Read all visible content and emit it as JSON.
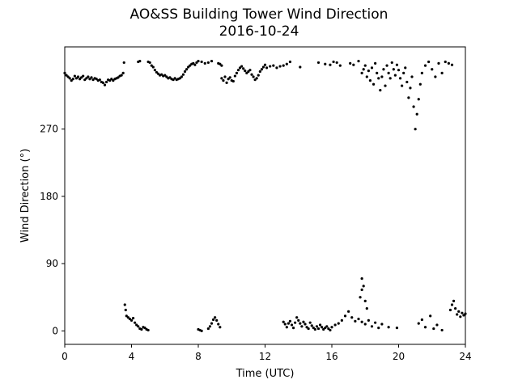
{
  "chart_data": {
    "type": "scatter",
    "title": "AO&SS Building Tower Wind Direction",
    "subtitle": "2016-10-24",
    "xlabel": "Time (UTC)",
    "ylabel": "Wind Direction (°)",
    "xlim": [
      0,
      24
    ],
    "ylim": [
      -18,
      380
    ],
    "xticks": [
      0,
      4,
      8,
      12,
      16,
      20,
      24
    ],
    "yticks": [
      0,
      90,
      180,
      270
    ],
    "grid": false,
    "marker_color": "#000000",
    "series": [
      {
        "points": [
          [
            0.0,
            345
          ],
          [
            0.1,
            342
          ],
          [
            0.2,
            340
          ],
          [
            0.3,
            338
          ],
          [
            0.4,
            335
          ],
          [
            0.5,
            337
          ],
          [
            0.6,
            341
          ],
          [
            0.7,
            338
          ],
          [
            0.8,
            340
          ],
          [
            0.9,
            337
          ],
          [
            1.0,
            339
          ],
          [
            1.1,
            341
          ],
          [
            1.2,
            336
          ],
          [
            1.3,
            338
          ],
          [
            1.4,
            340
          ],
          [
            1.5,
            337
          ],
          [
            1.6,
            339
          ],
          [
            1.7,
            336
          ],
          [
            1.8,
            338
          ],
          [
            1.9,
            337
          ],
          [
            2.0,
            335
          ],
          [
            2.1,
            336
          ],
          [
            2.2,
            333
          ],
          [
            2.3,
            332
          ],
          [
            2.4,
            329
          ],
          [
            2.5,
            333
          ],
          [
            2.6,
            336
          ],
          [
            2.7,
            335
          ],
          [
            2.8,
            337
          ],
          [
            2.9,
            335
          ],
          [
            3.0,
            337
          ],
          [
            3.1,
            338
          ],
          [
            3.2,
            339
          ],
          [
            3.3,
            341
          ],
          [
            3.4,
            342
          ],
          [
            3.5,
            345
          ],
          [
            3.55,
            359
          ],
          [
            3.6,
            35
          ],
          [
            3.65,
            28
          ],
          [
            3.7,
            20
          ],
          [
            3.8,
            18
          ],
          [
            3.9,
            16
          ],
          [
            4.0,
            14
          ],
          [
            4.1,
            17
          ],
          [
            4.2,
            11
          ],
          [
            4.3,
            8
          ],
          [
            4.4,
            6
          ],
          [
            4.5,
            3
          ],
          [
            4.6,
            2
          ],
          [
            4.7,
            5
          ],
          [
            4.8,
            4
          ],
          [
            4.9,
            2
          ],
          [
            5.0,
            1
          ],
          [
            4.4,
            360
          ],
          [
            4.5,
            361
          ],
          [
            5.0,
            360
          ],
          [
            5.1,
            359
          ],
          [
            5.2,
            355
          ],
          [
            5.3,
            353
          ],
          [
            5.4,
            349
          ],
          [
            5.5,
            346
          ],
          [
            5.6,
            344
          ],
          [
            5.7,
            342
          ],
          [
            5.8,
            343
          ],
          [
            5.9,
            341
          ],
          [
            6.0,
            342
          ],
          [
            6.1,
            340
          ],
          [
            6.2,
            338
          ],
          [
            6.3,
            339
          ],
          [
            6.4,
            337
          ],
          [
            6.5,
            336
          ],
          [
            6.6,
            338
          ],
          [
            6.7,
            336
          ],
          [
            6.8,
            337
          ],
          [
            6.9,
            338
          ],
          [
            7.0,
            340
          ],
          [
            7.1,
            343
          ],
          [
            7.2,
            347
          ],
          [
            7.3,
            350
          ],
          [
            7.4,
            353
          ],
          [
            7.5,
            355
          ],
          [
            7.6,
            357
          ],
          [
            7.7,
            358
          ],
          [
            7.8,
            356
          ],
          [
            7.9,
            359
          ],
          [
            8.0,
            361
          ],
          [
            8.2,
            360
          ],
          [
            8.4,
            358
          ],
          [
            8.6,
            359
          ],
          [
            8.8,
            361
          ],
          [
            9.2,
            358
          ],
          [
            9.3,
            357
          ],
          [
            9.4,
            355
          ],
          [
            8.0,
            2
          ],
          [
            8.1,
            1
          ],
          [
            8.2,
            0
          ],
          [
            8.6,
            3
          ],
          [
            8.7,
            6
          ],
          [
            8.8,
            10
          ],
          [
            8.9,
            15
          ],
          [
            9.0,
            18
          ],
          [
            9.1,
            14
          ],
          [
            9.2,
            9
          ],
          [
            9.3,
            5
          ],
          [
            9.4,
            338
          ],
          [
            9.5,
            335
          ],
          [
            9.6,
            340
          ],
          [
            9.7,
            332
          ],
          [
            9.8,
            337
          ],
          [
            9.9,
            339
          ],
          [
            10.0,
            335
          ],
          [
            10.1,
            334
          ],
          [
            10.2,
            341
          ],
          [
            10.3,
            345
          ],
          [
            10.4,
            349
          ],
          [
            10.5,
            352
          ],
          [
            10.6,
            354
          ],
          [
            10.7,
            351
          ],
          [
            10.8,
            348
          ],
          [
            10.9,
            345
          ],
          [
            11.0,
            347
          ],
          [
            11.1,
            349
          ],
          [
            11.2,
            343
          ],
          [
            11.3,
            340
          ],
          [
            11.4,
            336
          ],
          [
            11.5,
            338
          ],
          [
            11.6,
            342
          ],
          [
            11.7,
            347
          ],
          [
            11.8,
            350
          ],
          [
            11.9,
            353
          ],
          [
            12.0,
            356
          ],
          [
            12.1,
            352
          ],
          [
            12.3,
            354
          ],
          [
            12.5,
            355
          ],
          [
            12.7,
            352
          ],
          [
            12.9,
            354
          ],
          [
            13.1,
            355
          ],
          [
            13.3,
            357
          ],
          [
            13.5,
            360
          ],
          [
            13.1,
            12
          ],
          [
            13.2,
            9
          ],
          [
            13.3,
            5
          ],
          [
            13.4,
            10
          ],
          [
            13.5,
            13
          ],
          [
            13.6,
            8
          ],
          [
            13.7,
            4
          ],
          [
            13.8,
            11
          ],
          [
            13.9,
            18
          ],
          [
            14.0,
            14
          ],
          [
            14.1,
            10
          ],
          [
            14.2,
            6
          ],
          [
            14.3,
            12
          ],
          [
            14.4,
            9
          ],
          [
            14.5,
            5
          ],
          [
            14.6,
            3
          ],
          [
            14.7,
            11
          ],
          [
            14.8,
            7
          ],
          [
            14.9,
            4
          ],
          [
            15.0,
            2
          ],
          [
            15.1,
            6
          ],
          [
            15.2,
            3
          ],
          [
            15.3,
            8
          ],
          [
            15.4,
            5
          ],
          [
            15.5,
            2
          ],
          [
            15.6,
            4
          ],
          [
            15.7,
            6
          ],
          [
            15.8,
            3
          ],
          [
            15.9,
            1
          ],
          [
            16.0,
            5
          ],
          [
            16.2,
            8
          ],
          [
            16.4,
            10
          ],
          [
            16.6,
            14
          ],
          [
            16.8,
            20
          ],
          [
            17.0,
            26
          ],
          [
            17.2,
            18
          ],
          [
            17.4,
            13
          ],
          [
            17.6,
            16
          ],
          [
            17.8,
            12
          ],
          [
            18.0,
            9
          ],
          [
            18.2,
            14
          ],
          [
            18.4,
            6
          ],
          [
            18.6,
            11
          ],
          [
            18.8,
            4
          ],
          [
            19.0,
            9
          ],
          [
            19.4,
            5
          ],
          [
            19.9,
            4
          ],
          [
            17.7,
            45
          ],
          [
            17.8,
            55
          ],
          [
            17.8,
            70
          ],
          [
            17.9,
            60
          ],
          [
            18.0,
            40
          ],
          [
            18.1,
            30
          ],
          [
            14.1,
            353
          ],
          [
            15.2,
            359
          ],
          [
            15.6,
            357
          ],
          [
            15.9,
            356
          ],
          [
            16.1,
            360
          ],
          [
            16.3,
            359
          ],
          [
            16.5,
            355
          ],
          [
            17.1,
            358
          ],
          [
            17.3,
            356
          ],
          [
            17.6,
            361
          ],
          [
            17.8,
            345
          ],
          [
            17.9,
            350
          ],
          [
            18.0,
            355
          ],
          [
            18.1,
            340
          ],
          [
            18.2,
            348
          ],
          [
            18.3,
            335
          ],
          [
            18.4,
            352
          ],
          [
            18.5,
            330
          ],
          [
            18.6,
            358
          ],
          [
            18.7,
            345
          ],
          [
            18.8,
            338
          ],
          [
            18.9,
            322
          ],
          [
            19.0,
            340
          ],
          [
            19.1,
            350
          ],
          [
            19.2,
            328
          ],
          [
            19.3,
            355
          ],
          [
            19.4,
            345
          ],
          [
            19.5,
            338
          ],
          [
            19.6,
            359
          ],
          [
            19.7,
            350
          ],
          [
            19.8,
            342
          ],
          [
            19.9,
            356
          ],
          [
            20.0,
            349
          ],
          [
            20.1,
            338
          ],
          [
            20.2,
            328
          ],
          [
            20.3,
            345
          ],
          [
            20.4,
            352
          ],
          [
            20.5,
            333
          ],
          [
            20.6,
            312
          ],
          [
            20.7,
            325
          ],
          [
            20.8,
            340
          ],
          [
            20.9,
            300
          ],
          [
            21.0,
            270
          ],
          [
            21.1,
            290
          ],
          [
            21.2,
            310
          ],
          [
            21.3,
            330
          ],
          [
            21.4,
            345
          ],
          [
            21.6,
            355
          ],
          [
            21.8,
            360
          ],
          [
            22.0,
            350
          ],
          [
            22.2,
            340
          ],
          [
            22.4,
            358
          ],
          [
            22.6,
            345
          ],
          [
            22.8,
            360
          ],
          [
            23.0,
            358
          ],
          [
            23.2,
            356
          ],
          [
            21.2,
            10
          ],
          [
            21.4,
            15
          ],
          [
            21.6,
            5
          ],
          [
            21.9,
            20
          ],
          [
            22.1,
            3
          ],
          [
            22.3,
            8
          ],
          [
            22.6,
            1
          ],
          [
            23.1,
            28
          ],
          [
            23.2,
            35
          ],
          [
            23.3,
            40
          ],
          [
            23.4,
            30
          ],
          [
            23.5,
            22
          ],
          [
            23.6,
            26
          ],
          [
            23.7,
            19
          ],
          [
            23.8,
            24
          ],
          [
            23.9,
            21
          ],
          [
            24.0,
            23
          ]
        ]
      }
    ]
  }
}
